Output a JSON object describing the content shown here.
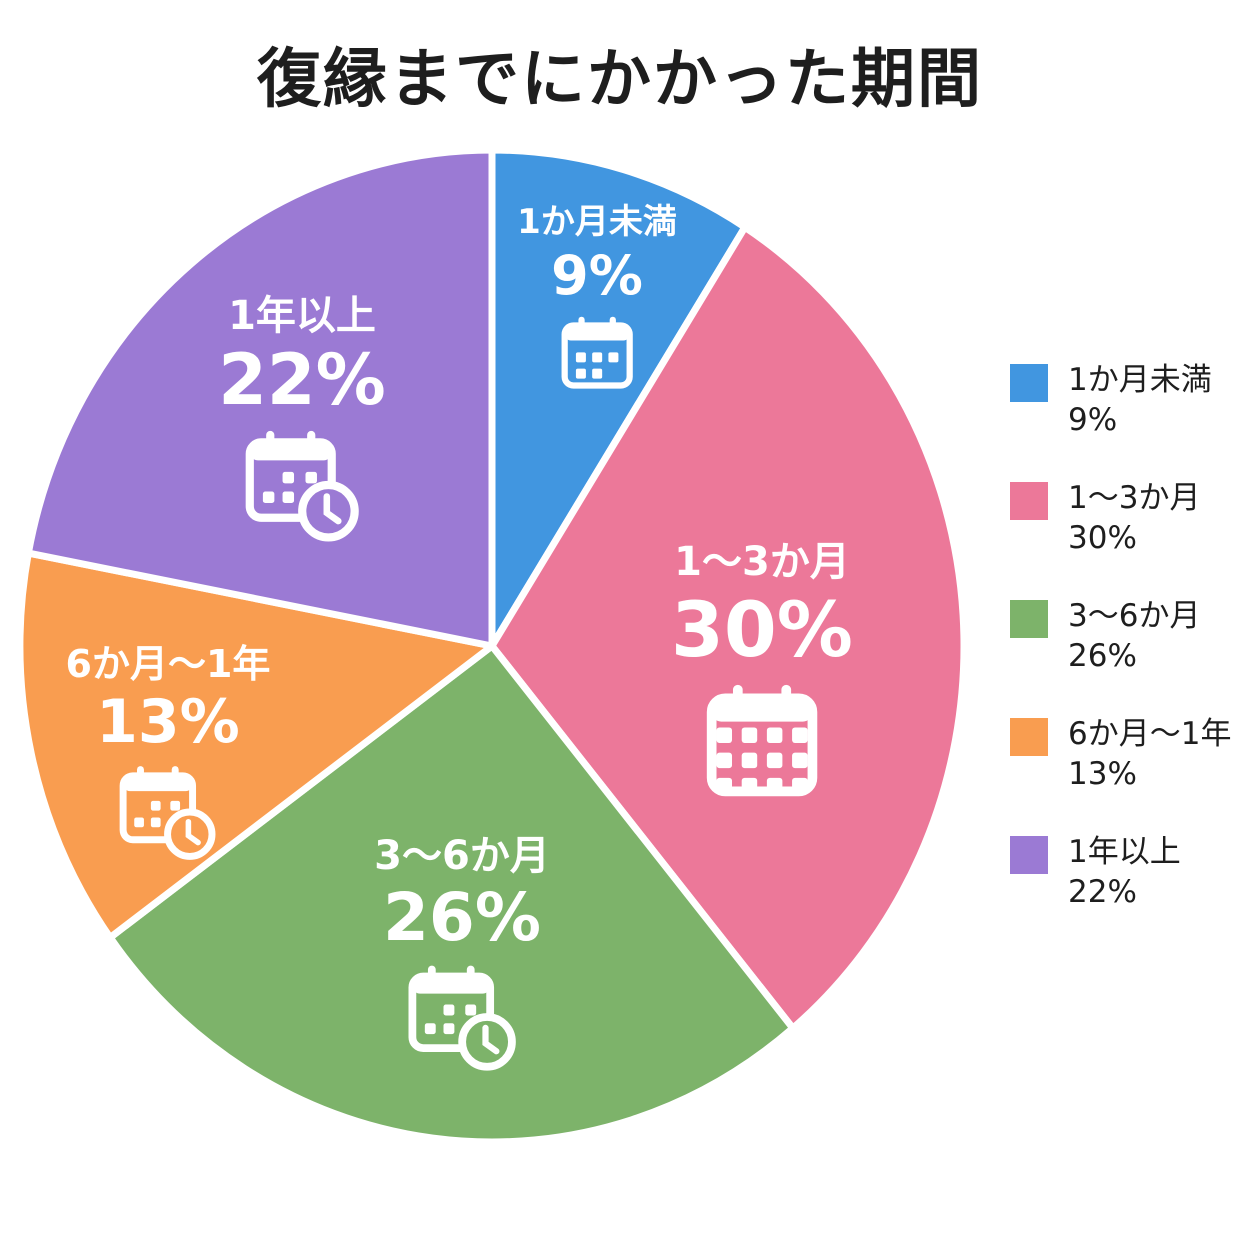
{
  "title": "復縁までにかかった期間",
  "colors": {
    "blue": "#4196e0",
    "pink": "#ec7899",
    "green": "#7db36a",
    "orange": "#f99d50",
    "purple": "#9b7ad4"
  },
  "slices": [
    {
      "label": "1か月未満",
      "pct_label": "9%",
      "value": 9,
      "color": "#4196e0",
      "icon": "calendar-icon"
    },
    {
      "label": "1〜3か月",
      "pct_label": "30%",
      "value": 30,
      "color": "#ec7899",
      "icon": "calendar-icon"
    },
    {
      "label": "3〜6か月",
      "pct_label": "26%",
      "value": 26,
      "color": "#7db36a",
      "icon": "calendar-clock-icon"
    },
    {
      "label": "6か月〜1年",
      "pct_label": "13%",
      "value": 13,
      "color": "#f99d50",
      "icon": "calendar-clock-icon"
    },
    {
      "label": "1年以上",
      "pct_label": "22%",
      "value": 22,
      "color": "#9b7ad4",
      "icon": "calendar-clock-icon"
    }
  ],
  "legend": [
    {
      "label": "1か月未満",
      "pct": "9%",
      "color": "#4196e0"
    },
    {
      "label": "1〜3か月",
      "pct": "30%",
      "color": "#ec7899"
    },
    {
      "label": "3〜6か月",
      "pct": "26%",
      "color": "#7db36a"
    },
    {
      "label": "6か月〜1年",
      "pct": "13%",
      "color": "#f99d50"
    },
    {
      "label": "1年以上",
      "pct": "22%",
      "color": "#9b7ad4"
    }
  ],
  "chart_data": {
    "type": "pie",
    "title": "復縁までにかかった期間",
    "categories": [
      "1か月未満",
      "1〜3か月",
      "3〜6か月",
      "6か月〜1年",
      "1年以上"
    ],
    "values": [
      9,
      30,
      26,
      13,
      22
    ],
    "unit": "%",
    "colors": [
      "#4196e0",
      "#ec7899",
      "#7db36a",
      "#f99d50",
      "#9b7ad4"
    ],
    "start_angle": "12 o'clock",
    "direction": "clockwise",
    "legend_position": "right"
  }
}
